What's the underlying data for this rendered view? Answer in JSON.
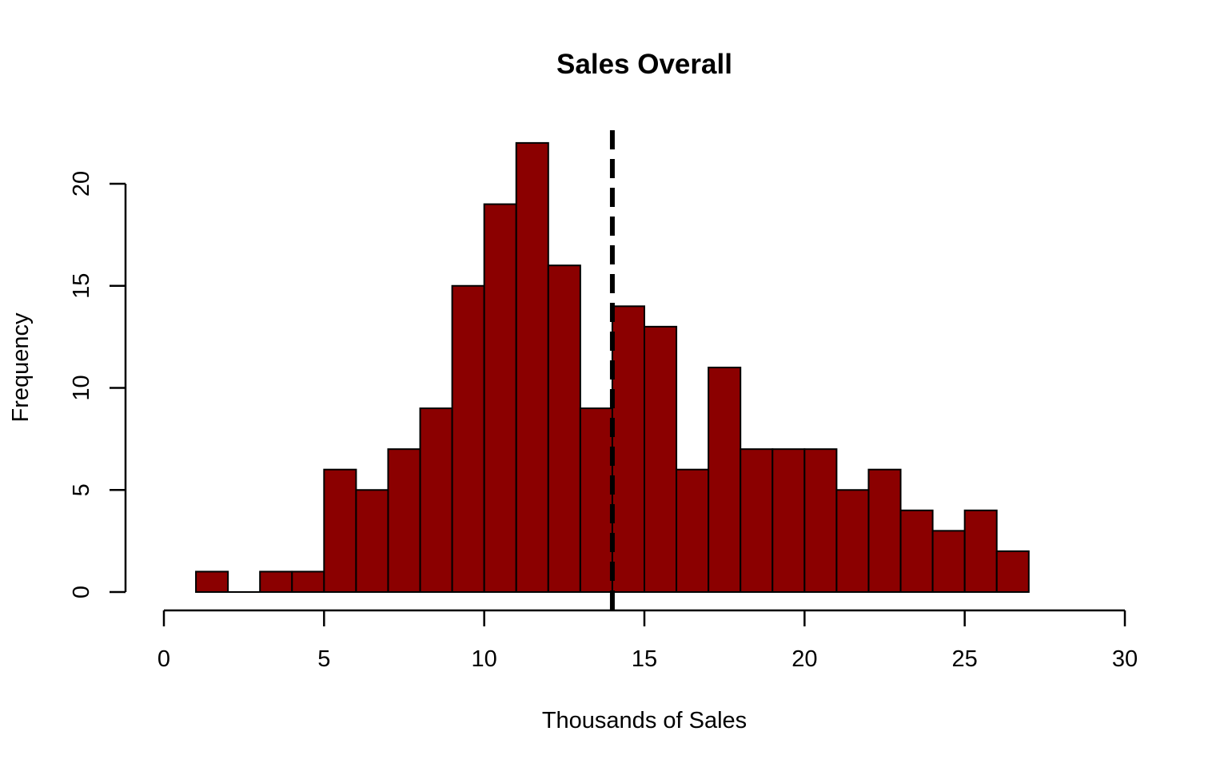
{
  "chart_data": {
    "type": "histogram",
    "title": "Sales Overall",
    "xlabel": "Thousands of Sales",
    "ylabel": "Frequency",
    "xlim": [
      0,
      30
    ],
    "ylim": [
      0,
      22
    ],
    "x_ticks": [
      0,
      5,
      10,
      15,
      20,
      25,
      30
    ],
    "y_ticks": [
      0,
      5,
      10,
      15,
      20
    ],
    "bin_width": 1,
    "bins": [
      {
        "start": 1,
        "end": 2,
        "count": 1
      },
      {
        "start": 2,
        "end": 3,
        "count": 0
      },
      {
        "start": 3,
        "end": 4,
        "count": 1
      },
      {
        "start": 4,
        "end": 5,
        "count": 1
      },
      {
        "start": 5,
        "end": 6,
        "count": 6
      },
      {
        "start": 6,
        "end": 7,
        "count": 5
      },
      {
        "start": 7,
        "end": 8,
        "count": 7
      },
      {
        "start": 8,
        "end": 9,
        "count": 9
      },
      {
        "start": 9,
        "end": 10,
        "count": 15
      },
      {
        "start": 10,
        "end": 11,
        "count": 19
      },
      {
        "start": 11,
        "end": 12,
        "count": 22
      },
      {
        "start": 12,
        "end": 13,
        "count": 16
      },
      {
        "start": 13,
        "end": 14,
        "count": 9
      },
      {
        "start": 14,
        "end": 15,
        "count": 14
      },
      {
        "start": 15,
        "end": 16,
        "count": 13
      },
      {
        "start": 16,
        "end": 17,
        "count": 6
      },
      {
        "start": 17,
        "end": 18,
        "count": 11
      },
      {
        "start": 18,
        "end": 19,
        "count": 7
      },
      {
        "start": 19,
        "end": 20,
        "count": 7
      },
      {
        "start": 20,
        "end": 21,
        "count": 7
      },
      {
        "start": 21,
        "end": 22,
        "count": 5
      },
      {
        "start": 22,
        "end": 23,
        "count": 6
      },
      {
        "start": 23,
        "end": 24,
        "count": 4
      },
      {
        "start": 24,
        "end": 25,
        "count": 3
      },
      {
        "start": 25,
        "end": 26,
        "count": 4
      },
      {
        "start": 26,
        "end": 27,
        "count": 2
      }
    ],
    "vertical_line": {
      "x": 14,
      "style": "dashed",
      "color": "#000000"
    },
    "bar_color": "#8b0000",
    "grid": false,
    "legend": "none"
  }
}
